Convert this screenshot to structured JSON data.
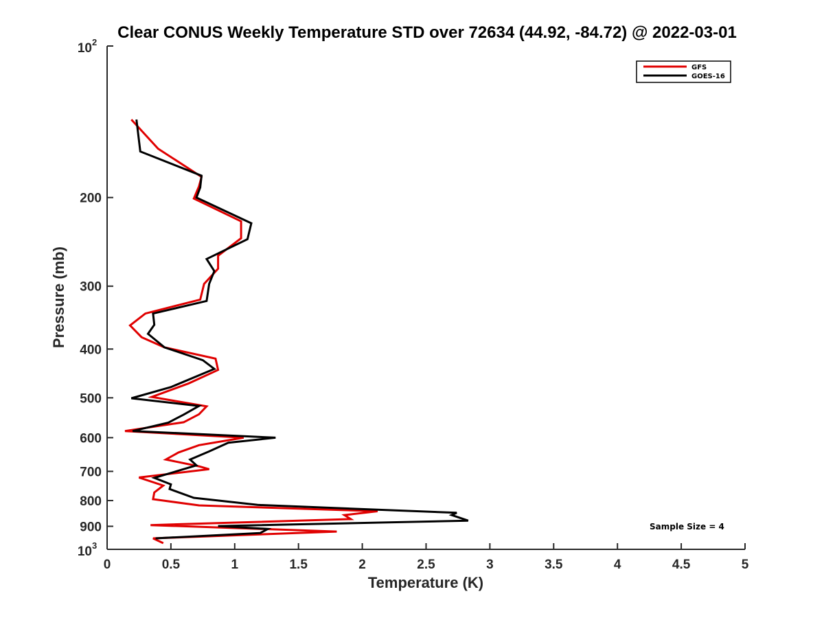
{
  "chart_data": {
    "type": "line",
    "title": "Clear CONUS Weekly Temperature STD over 72634 (44.92, -84.72) @ 2022-03-01",
    "xlabel": "Temperature (K)",
    "ylabel": "Pressure (mb)",
    "xlim": [
      0,
      5
    ],
    "ylim": [
      100,
      1000
    ],
    "yscale": "log",
    "y_reversed": true,
    "grid": false,
    "legend_position": "top-right",
    "annotation": "Sample Size = 4",
    "x_ticks": [
      "0",
      "0.5",
      "1",
      "1.5",
      "2",
      "2.5",
      "3",
      "3.5",
      "4",
      "4.5",
      "5"
    ],
    "y_ticks": [
      {
        "value": 100,
        "base": "10",
        "exp": "2"
      },
      {
        "value": 200,
        "label": "200"
      },
      {
        "value": 300,
        "label": "300"
      },
      {
        "value": 400,
        "label": "400"
      },
      {
        "value": 500,
        "label": "500"
      },
      {
        "value": 600,
        "label": "600"
      },
      {
        "value": 700,
        "label": "700"
      },
      {
        "value": 800,
        "label": "800"
      },
      {
        "value": 900,
        "label": "900"
      },
      {
        "value": 1000,
        "base": "10",
        "exp": "3"
      }
    ],
    "series": [
      {
        "name": "GFS",
        "color": "#e00000",
        "points": [
          [
            0.19,
            140
          ],
          [
            0.4,
            160
          ],
          [
            0.74,
            182
          ],
          [
            0.72,
            190
          ],
          [
            0.68,
            201
          ],
          [
            1.05,
            223
          ],
          [
            1.05,
            241
          ],
          [
            0.87,
            261
          ],
          [
            0.87,
            277
          ],
          [
            0.76,
            297
          ],
          [
            0.73,
            319
          ],
          [
            0.3,
            340
          ],
          [
            0.18,
            359
          ],
          [
            0.27,
            379
          ],
          [
            0.45,
            397
          ],
          [
            0.85,
            418
          ],
          [
            0.87,
            440
          ],
          [
            0.64,
            468
          ],
          [
            0.35,
            498
          ],
          [
            0.78,
            520
          ],
          [
            0.72,
            539
          ],
          [
            0.6,
            559
          ],
          [
            0.14,
            582
          ],
          [
            1.07,
            600
          ],
          [
            0.72,
            621
          ],
          [
            0.56,
            642
          ],
          [
            0.46,
            663
          ],
          [
            0.72,
            684
          ],
          [
            0.8,
            693
          ],
          [
            0.25,
            720
          ],
          [
            0.44,
            747
          ],
          [
            0.37,
            771
          ],
          [
            0.36,
            795
          ],
          [
            0.72,
            818
          ],
          [
            2.12,
            840
          ],
          [
            1.86,
            855
          ],
          [
            1.91,
            871
          ],
          [
            0.34,
            895
          ],
          [
            1.8,
            922
          ],
          [
            0.36,
            951
          ],
          [
            0.44,
            972
          ]
        ]
      },
      {
        "name": "GOES-16",
        "color": "#000000",
        "points": [
          [
            0.23,
            140
          ],
          [
            0.26,
            162
          ],
          [
            0.74,
            181
          ],
          [
            0.73,
            191
          ],
          [
            0.7,
            200
          ],
          [
            1.13,
            225
          ],
          [
            1.1,
            242
          ],
          [
            0.78,
            265
          ],
          [
            0.84,
            280
          ],
          [
            0.8,
            297
          ],
          [
            0.78,
            321
          ],
          [
            0.36,
            340
          ],
          [
            0.37,
            358
          ],
          [
            0.32,
            373
          ],
          [
            0.45,
            397
          ],
          [
            0.75,
            421
          ],
          [
            0.84,
            438
          ],
          [
            0.5,
            476
          ],
          [
            0.19,
            501
          ],
          [
            0.72,
            519
          ],
          [
            0.6,
            540
          ],
          [
            0.48,
            560
          ],
          [
            0.2,
            582
          ],
          [
            1.32,
            600
          ],
          [
            0.95,
            614
          ],
          [
            0.8,
            639
          ],
          [
            0.65,
            663
          ],
          [
            0.7,
            681
          ],
          [
            0.37,
            721
          ],
          [
            0.5,
            743
          ],
          [
            0.49,
            759
          ],
          [
            0.68,
            790
          ],
          [
            1.18,
            816
          ],
          [
            2.74,
            846
          ],
          [
            2.7,
            855
          ],
          [
            2.83,
            877
          ],
          [
            0.87,
            899
          ],
          [
            1.26,
            911
          ],
          [
            1.2,
            928
          ],
          [
            0.38,
            951
          ]
        ]
      }
    ]
  }
}
